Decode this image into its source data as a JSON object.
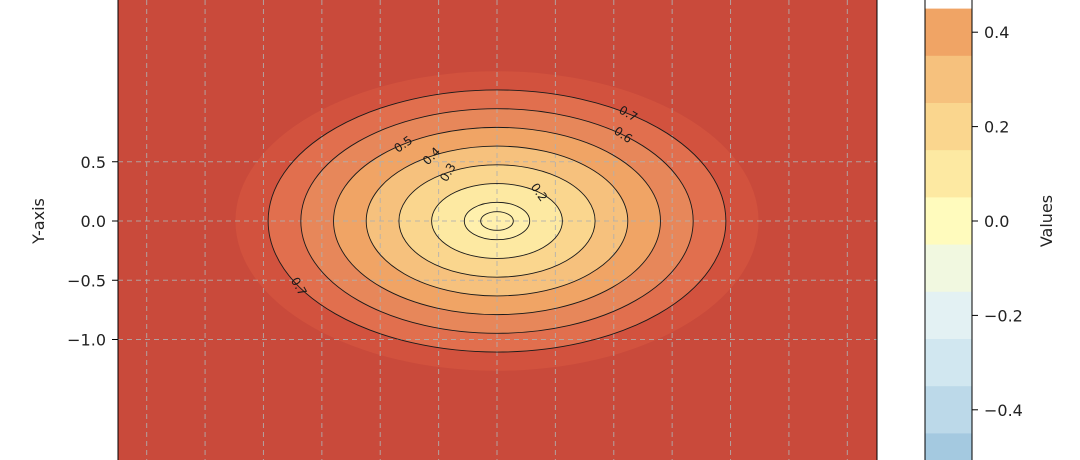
{
  "chart_data": {
    "type": "contour",
    "title": "",
    "xlabel": "",
    "ylabel": "Y-axis",
    "y_ticks": [
      0.5,
      0.0,
      -0.5,
      -1.0
    ],
    "y_tick_labels": [
      "0.5",
      "0.0",
      "−0.5",
      "−1.0"
    ],
    "x_visible_range": [
      -1.3,
      1.3
    ],
    "y_visible_range": [
      -1.02,
      0.93
    ],
    "grid": true,
    "fill_levels": [
      0.0,
      0.1,
      0.2,
      0.3,
      0.4,
      0.5,
      0.6,
      0.7,
      0.8
    ],
    "contour_line_levels": [
      0.1,
      0.2,
      0.3,
      0.4,
      0.5,
      0.6,
      0.7
    ],
    "contour_labels": [
      {
        "text": "0.2",
        "level": 0.2
      },
      {
        "text": "0.3",
        "level": 0.3
      },
      {
        "text": "0.4",
        "level": 0.4
      },
      {
        "text": "0.5",
        "level": 0.5
      },
      {
        "text": "0.6",
        "level": 0.6
      },
      {
        "text": "0.7",
        "level": 0.7
      },
      {
        "text": "0.7",
        "level": 0.7
      }
    ],
    "colorbar": {
      "label": "Values",
      "ticks": [
        0.4,
        0.2,
        0.0,
        -0.2,
        -0.4
      ],
      "tick_labels": [
        "0.4",
        "0.2",
        "0.0",
        "−0.2",
        "−0.4"
      ],
      "band_step": 0.1,
      "band_colors": {
        "0.4": "#f0a465",
        "0.3": "#f6c17d",
        "0.2": "#fad68e",
        "0.1": "#fde9a2",
        "0.0": "#fffbbd",
        "-0.1": "#f1f8e0",
        "-0.2": "#e3f1f3",
        "-0.3": "#d1e7f0",
        "-0.4": "#bcd9e9",
        "-0.5": "#a4c9e0"
      }
    },
    "fill_colors": [
      "#fff0ad",
      "#fde9a2",
      "#fad68e",
      "#f6c17d",
      "#f0a465",
      "#e7875a",
      "#e16f4e",
      "#d2523e",
      "#c94a3b"
    ]
  }
}
